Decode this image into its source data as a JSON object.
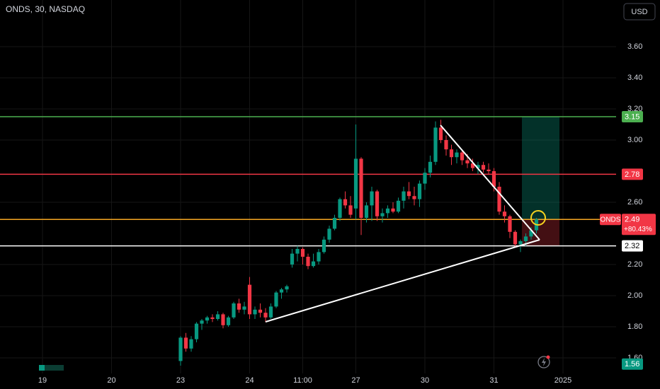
{
  "chart_data": {
    "type": "candlestick",
    "title": "ONDS, 30, NASDAQ",
    "currency": "USD",
    "up_color": "#089981",
    "down_color": "#f23645",
    "grid": true,
    "ylim": [
      1.5,
      3.9
    ],
    "yticks": [
      {
        "value": 1.6,
        "label": "1.60"
      },
      {
        "value": 1.8,
        "label": "1.80"
      },
      {
        "value": 2.0,
        "label": "2.00"
      },
      {
        "value": 2.2,
        "label": "2.20"
      },
      {
        "value": 2.6,
        "label": "2.60"
      },
      {
        "value": 3.0,
        "label": "3.00"
      },
      {
        "value": 3.2,
        "label": "3.20"
      },
      {
        "value": 3.4,
        "label": "3.40"
      },
      {
        "value": 3.6,
        "label": "3.60"
      }
    ],
    "xlim": [
      -34,
      82
    ],
    "xticks": [
      {
        "value": -26,
        "label": "19"
      },
      {
        "value": -13,
        "label": "20"
      },
      {
        "value": 0,
        "label": "23"
      },
      {
        "value": 13,
        "label": "24"
      },
      {
        "value": 23,
        "label": "11:00"
      },
      {
        "value": 33,
        "label": "27"
      },
      {
        "value": 46,
        "label": "30"
      },
      {
        "value": 59,
        "label": "31"
      },
      {
        "value": 72,
        "label": "2025"
      }
    ],
    "x": [
      0,
      1,
      2,
      3,
      4,
      5,
      6,
      7,
      8,
      9,
      10,
      11,
      12,
      13,
      14,
      15,
      16,
      17,
      18,
      19,
      20,
      21,
      22,
      23,
      24,
      25,
      26,
      27,
      28,
      29,
      30,
      31,
      32,
      33,
      34,
      35,
      36,
      37,
      38,
      39,
      40,
      41,
      42,
      43,
      44,
      45,
      46,
      47,
      48,
      49,
      50,
      51,
      52,
      53,
      54,
      55,
      56,
      57,
      58,
      59,
      60,
      61,
      62,
      63,
      64,
      65,
      66,
      67
    ],
    "open": [
      1.58,
      1.73,
      1.66,
      1.72,
      1.82,
      1.84,
      1.86,
      1.85,
      1.88,
      1.81,
      1.86,
      1.95,
      1.91,
      2.07,
      1.88,
      1.91,
      1.89,
      1.86,
      1.93,
      2.02,
      2.04,
      2.2,
      2.27,
      2.3,
      2.25,
      2.19,
      2.22,
      2.28,
      2.36,
      2.43,
      2.5,
      2.62,
      2.58,
      2.56,
      2.88,
      2.5,
      2.58,
      2.67,
      2.51,
      2.53,
      2.56,
      2.54,
      2.61,
      2.67,
      2.64,
      2.62,
      2.72,
      2.79,
      2.86,
      3.08,
      3.0,
      2.94,
      2.89,
      2.92,
      2.87,
      2.85,
      2.82,
      2.84,
      2.81,
      2.8,
      2.7,
      2.54,
      2.51,
      2.41,
      2.33,
      2.35,
      2.38,
      2.42
    ],
    "high": [
      1.74,
      1.76,
      1.74,
      1.83,
      1.85,
      1.87,
      1.88,
      1.9,
      1.89,
      1.87,
      1.96,
      1.98,
      1.96,
      2.12,
      1.93,
      1.95,
      1.92,
      1.95,
      2.03,
      2.05,
      2.07,
      2.3,
      2.32,
      2.31,
      2.27,
      2.27,
      2.3,
      2.38,
      2.45,
      2.52,
      2.63,
      2.67,
      2.64,
      3.1,
      2.89,
      2.6,
      2.7,
      2.68,
      2.56,
      2.58,
      2.6,
      2.63,
      2.7,
      2.73,
      2.7,
      2.74,
      2.82,
      2.9,
      3.12,
      3.13,
      3.03,
      2.97,
      2.94,
      2.93,
      2.91,
      2.88,
      2.86,
      2.86,
      2.85,
      2.82,
      2.73,
      2.58,
      2.52,
      2.42,
      2.36,
      2.4,
      2.44,
      2.5
    ],
    "low": [
      1.55,
      1.64,
      1.64,
      1.7,
      1.78,
      1.82,
      1.83,
      1.84,
      1.79,
      1.8,
      1.85,
      1.89,
      1.88,
      1.85,
      1.85,
      1.86,
      1.83,
      1.85,
      1.92,
      1.98,
      2.02,
      2.18,
      2.22,
      2.2,
      2.17,
      2.18,
      2.2,
      2.27,
      2.34,
      2.42,
      2.48,
      2.56,
      2.5,
      2.49,
      2.39,
      2.47,
      2.48,
      2.48,
      2.47,
      2.5,
      2.53,
      2.53,
      2.56,
      2.62,
      2.58,
      2.57,
      2.68,
      2.76,
      2.84,
      2.98,
      2.9,
      2.84,
      2.85,
      2.84,
      2.82,
      2.8,
      2.78,
      2.79,
      2.78,
      2.67,
      2.52,
      2.47,
      2.37,
      2.31,
      2.28,
      2.32,
      2.36,
      2.4
    ],
    "close": [
      1.73,
      1.66,
      1.72,
      1.82,
      1.84,
      1.86,
      1.85,
      1.88,
      1.81,
      1.86,
      1.95,
      1.91,
      1.93,
      1.88,
      1.91,
      1.89,
      1.86,
      1.93,
      2.02,
      2.04,
      2.06,
      2.27,
      2.3,
      2.25,
      2.19,
      2.22,
      2.28,
      2.36,
      2.43,
      2.5,
      2.62,
      2.58,
      2.52,
      2.88,
      2.5,
      2.58,
      2.67,
      2.51,
      2.53,
      2.56,
      2.54,
      2.61,
      2.67,
      2.64,
      2.62,
      2.72,
      2.79,
      2.86,
      3.08,
      3.0,
      2.94,
      2.89,
      2.92,
      2.87,
      2.85,
      2.82,
      2.84,
      2.81,
      2.8,
      2.7,
      2.54,
      2.51,
      2.41,
      2.33,
      2.35,
      2.38,
      2.42,
      2.49
    ],
    "levels": [
      {
        "value": 3.15,
        "color": "#4caf50",
        "text_color": "#ffffff",
        "show_line": true
      },
      {
        "value": 2.78,
        "color": "#f23645",
        "text_color": "#ffffff",
        "show_line": true
      },
      {
        "value": 2.32,
        "color": "#ffffff",
        "text_color": "#000000",
        "show_line": true
      },
      {
        "value": 1.56,
        "color": "#089981",
        "text_color": "#ffffff",
        "show_line": false
      }
    ],
    "last_price": {
      "name": "ONDS",
      "value": 2.49,
      "change": "+80.43%",
      "line_color": "#f5a623",
      "label_color": "#f23645"
    }
  }
}
